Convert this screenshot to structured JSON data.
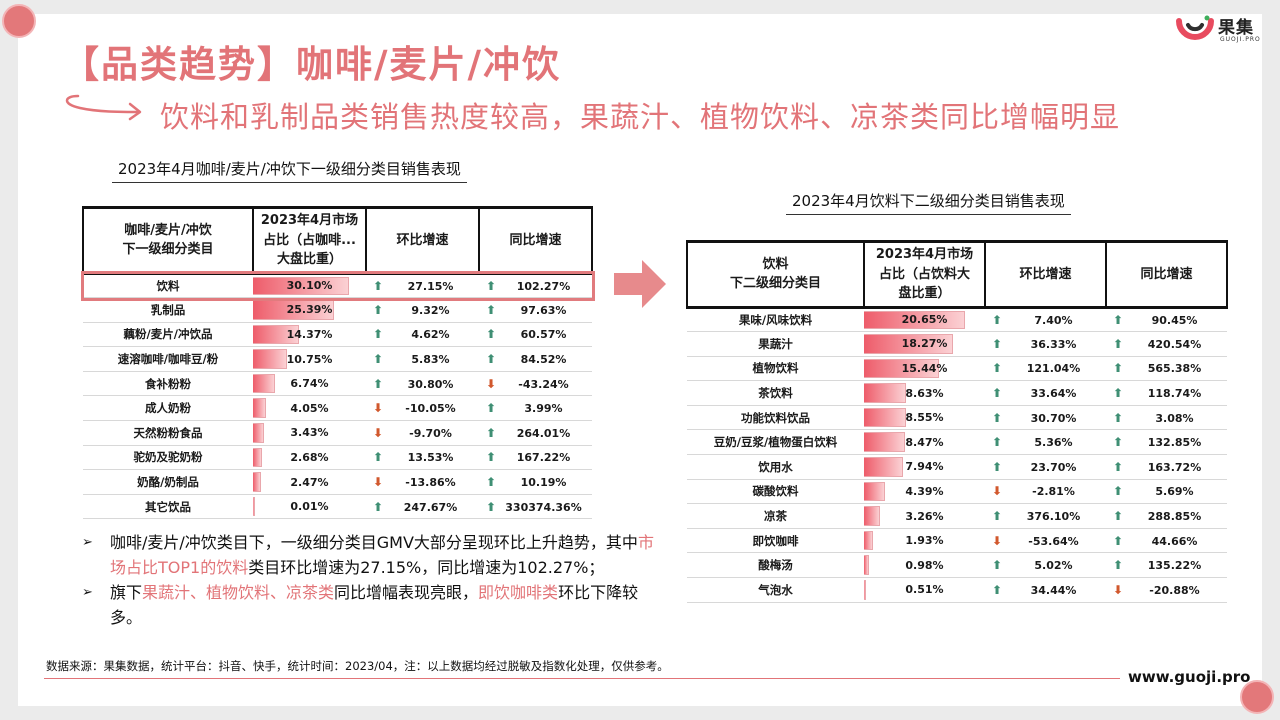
{
  "logo": {
    "name": "果集",
    "sub": "GUOJI.PRO"
  },
  "title": "【品类趋势】咖啡/麦片/冲饮",
  "subtitle": "饮料和乳制品类销售热度较高，果蔬汁、植物饮料、凉茶类同比增幅明显",
  "left_table": {
    "caption": "2023年4月咖啡/麦片/冲饮下一级细分类目销售表现",
    "headers": [
      "咖啡/麦片/冲饮\n下一级细分类目",
      "2023年4月市场\n占比（占咖啡...\n大盘比重）",
      "环比增速",
      "同比增速"
    ],
    "rows": [
      {
        "name": "饮料",
        "share": "30.10%",
        "share_pct": 30.1,
        "mom": "27.15%",
        "mom_dir": "up",
        "yoy": "102.27%",
        "yoy_dir": "up"
      },
      {
        "name": "乳制品",
        "share": "25.39%",
        "share_pct": 25.39,
        "mom": "9.32%",
        "mom_dir": "up",
        "yoy": "97.63%",
        "yoy_dir": "up"
      },
      {
        "name": "藕粉/麦片/冲饮品",
        "share": "14.37%",
        "share_pct": 14.37,
        "mom": "4.62%",
        "mom_dir": "up",
        "yoy": "60.57%",
        "yoy_dir": "up"
      },
      {
        "name": "速溶咖啡/咖啡豆/粉",
        "share": "10.75%",
        "share_pct": 10.75,
        "mom": "5.83%",
        "mom_dir": "up",
        "yoy": "84.52%",
        "yoy_dir": "up"
      },
      {
        "name": "食补粉粉",
        "share": "6.74%",
        "share_pct": 6.74,
        "mom": "30.80%",
        "mom_dir": "up",
        "yoy": "-43.24%",
        "yoy_dir": "down"
      },
      {
        "name": "成人奶粉",
        "share": "4.05%",
        "share_pct": 4.05,
        "mom": "-10.05%",
        "mom_dir": "down",
        "yoy": "3.99%",
        "yoy_dir": "up"
      },
      {
        "name": "天然粉粉食品",
        "share": "3.43%",
        "share_pct": 3.43,
        "mom": "-9.70%",
        "mom_dir": "down",
        "yoy": "264.01%",
        "yoy_dir": "up"
      },
      {
        "name": "驼奶及驼奶粉",
        "share": "2.68%",
        "share_pct": 2.68,
        "mom": "13.53%",
        "mom_dir": "up",
        "yoy": "167.22%",
        "yoy_dir": "up"
      },
      {
        "name": "奶酪/奶制品",
        "share": "2.47%",
        "share_pct": 2.47,
        "mom": "-13.86%",
        "mom_dir": "down",
        "yoy": "10.19%",
        "yoy_dir": "up"
      },
      {
        "name": "其它饮品",
        "share": "0.01%",
        "share_pct": 0.01,
        "mom": "247.67%",
        "mom_dir": "up",
        "yoy": "330374.36%",
        "yoy_dir": "up"
      }
    ]
  },
  "right_table": {
    "caption": "2023年4月饮料下二级细分类目销售表现",
    "headers": [
      "饮料\n下二级细分类目",
      "2023年4月市场\n占比（占饮料大\n盘比重）",
      "环比增速",
      "同比增速"
    ],
    "rows": [
      {
        "name": "果味/风味饮料",
        "share": "20.65%",
        "share_pct": 20.65,
        "mom": "7.40%",
        "mom_dir": "up",
        "yoy": "90.45%",
        "yoy_dir": "up"
      },
      {
        "name": "果蔬汁",
        "share": "18.27%",
        "share_pct": 18.27,
        "mom": "36.33%",
        "mom_dir": "up",
        "yoy": "420.54%",
        "yoy_dir": "up"
      },
      {
        "name": "植物饮料",
        "share": "15.44%",
        "share_pct": 15.44,
        "mom": "121.04%",
        "mom_dir": "up",
        "yoy": "565.38%",
        "yoy_dir": "up"
      },
      {
        "name": "茶饮料",
        "share": "8.63%",
        "share_pct": 8.63,
        "mom": "33.64%",
        "mom_dir": "up",
        "yoy": "118.74%",
        "yoy_dir": "up"
      },
      {
        "name": "功能饮料饮品",
        "share": "8.55%",
        "share_pct": 8.55,
        "mom": "30.70%",
        "mom_dir": "up",
        "yoy": "3.08%",
        "yoy_dir": "up"
      },
      {
        "name": "豆奶/豆浆/植物蛋白饮料",
        "share": "8.47%",
        "share_pct": 8.47,
        "mom": "5.36%",
        "mom_dir": "up",
        "yoy": "132.85%",
        "yoy_dir": "up"
      },
      {
        "name": "饮用水",
        "share": "7.94%",
        "share_pct": 7.94,
        "mom": "23.70%",
        "mom_dir": "up",
        "yoy": "163.72%",
        "yoy_dir": "up"
      },
      {
        "name": "碳酸饮料",
        "share": "4.39%",
        "share_pct": 4.39,
        "mom": "-2.81%",
        "mom_dir": "down",
        "yoy": "5.69%",
        "yoy_dir": "up"
      },
      {
        "name": "凉茶",
        "share": "3.26%",
        "share_pct": 3.26,
        "mom": "376.10%",
        "mom_dir": "up",
        "yoy": "288.85%",
        "yoy_dir": "up"
      },
      {
        "name": "即饮咖啡",
        "share": "1.93%",
        "share_pct": 1.93,
        "mom": "-53.64%",
        "mom_dir": "down",
        "yoy": "44.66%",
        "yoy_dir": "up"
      },
      {
        "name": "酸梅汤",
        "share": "0.98%",
        "share_pct": 0.98,
        "mom": "5.02%",
        "mom_dir": "up",
        "yoy": "135.22%",
        "yoy_dir": "up"
      },
      {
        "name": "气泡水",
        "share": "0.51%",
        "share_pct": 0.51,
        "mom": "34.44%",
        "mom_dir": "up",
        "yoy": "-20.88%",
        "yoy_dir": "down"
      }
    ]
  },
  "bullets": [
    {
      "parts": [
        {
          "text": "咖啡/麦片/冲饮类目下，一级细分类目GMV大部分呈现环比上升趋势，其中",
          "hl": false
        },
        {
          "text": "市场占比TOP1的饮料",
          "hl": true
        },
        {
          "text": "类目环比增速为27.15%，同比增速为102.27%；",
          "hl": false
        }
      ]
    },
    {
      "parts": [
        {
          "text": "旗下",
          "hl": false
        },
        {
          "text": "果蔬汁、植物饮料、凉茶类",
          "hl": true
        },
        {
          "text": "同比增幅表现亮眼，",
          "hl": false
        },
        {
          "text": "即饮咖啡类",
          "hl": true
        },
        {
          "text": "环比下降较多。",
          "hl": false
        }
      ]
    }
  ],
  "bullet_marker": "➢",
  "source": "数据来源：果集数据，统计平台：抖音、快手，统计时间：2023/04，注：以上数据均经过脱敏及指数化处理，仅供参考。",
  "website": "www.guoji.pro",
  "colors": {
    "accent": "#e27478",
    "up_arrow": "#3f8f74",
    "down_arrow": "#d1582d",
    "bar": "#ee5c6a"
  },
  "icons": {
    "up": "growth-up-arrow-icon",
    "down": "decline-down-arrow-icon"
  }
}
